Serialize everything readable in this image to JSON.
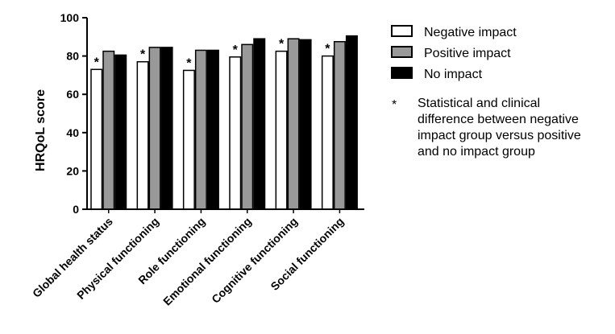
{
  "chart_data": {
    "type": "bar",
    "ylabel": "HRQoL score",
    "ylim": [
      0,
      100
    ],
    "yticks": [
      0,
      20,
      40,
      60,
      80,
      100
    ],
    "categories": [
      "Global health status",
      "Physical functioning",
      "Role functioning",
      "Emotional functioning",
      "Cognitive functioning",
      "Social functioning"
    ],
    "series": [
      {
        "name": "Negative impact",
        "values": [
          73,
          77,
          72.5,
          79.5,
          82.5,
          80
        ],
        "color": "#ffffff"
      },
      {
        "name": "Positive impact",
        "values": [
          82.5,
          84.5,
          83,
          86,
          89,
          87.5
        ],
        "color": "#999999"
      },
      {
        "name": "No impact",
        "values": [
          80.5,
          84.5,
          83,
          89,
          88.5,
          90.5
        ],
        "color": "#000000"
      }
    ],
    "annotations": [
      {
        "category_index": 0,
        "series": "Negative impact",
        "text": "*"
      },
      {
        "category_index": 1,
        "series": "Negative impact",
        "text": "*"
      },
      {
        "category_index": 2,
        "series": "Negative impact",
        "text": "*"
      },
      {
        "category_index": 3,
        "series": "Negative impact",
        "text": "*"
      },
      {
        "category_index": 4,
        "series": "Negative impact",
        "text": "*"
      },
      {
        "category_index": 5,
        "series": "Negative impact",
        "text": "*"
      }
    ],
    "footnote": {
      "symbol": "*",
      "lines": [
        "Statistical and clinical",
        "difference between negative",
        "impact group versus positive",
        "and no impact group"
      ]
    },
    "legend": "right",
    "grid": false
  }
}
